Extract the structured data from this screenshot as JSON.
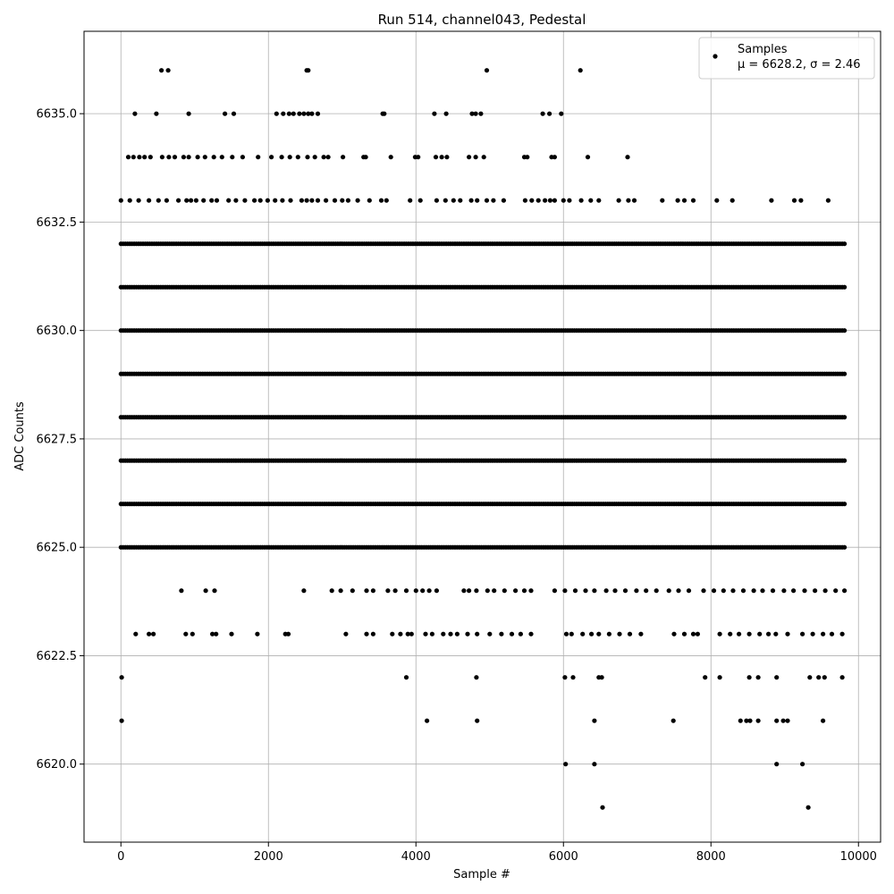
{
  "chart_data": {
    "type": "scatter",
    "title": "Run 514, channel043, Pedestal",
    "xlabel": "Sample #",
    "ylabel": "ADC Counts",
    "xlim": [
      -500,
      10300
    ],
    "ylim": [
      6618.2,
      6636.9
    ],
    "xticks": [
      0,
      2000,
      4000,
      6000,
      8000,
      10000
    ],
    "xtick_labels": [
      "0",
      "2000",
      "4000",
      "6000",
      "8000",
      "10000"
    ],
    "yticks": [
      6620.0,
      6622.5,
      6625.0,
      6627.5,
      6630.0,
      6632.5,
      6635.0
    ],
    "ytick_labels": [
      "6620.0",
      "6622.5",
      "6625.0",
      "6627.5",
      "6630.0",
      "6632.5",
      "6635.0"
    ],
    "grid": true,
    "legend": {
      "placement": "top-right",
      "entries": [
        {
          "line1": "Samples",
          "line2": "μ = 6628.2, σ = 2.46"
        }
      ]
    },
    "series": [
      {
        "name": "Samples",
        "color": "#000000",
        "x_range": [
          0,
          9830
        ],
        "dense_levels": [
          6625,
          6626,
          6627,
          6628,
          6629,
          6630,
          6631,
          6632
        ],
        "bands": [
          {
            "y": 6636,
            "x": [
              550,
              640,
              2520,
              2540,
              4960,
              6230
            ]
          },
          {
            "y": 6635,
            "x": [
              190,
              480,
              920,
              1410,
              1530,
              2110,
              2200,
              2280,
              2340,
              2420,
              2480,
              2540,
              2590,
              2670,
              3550,
              3570,
              4250,
              4410,
              4760,
              4810,
              4880,
              5720,
              5810,
              5970
            ]
          },
          {
            "y": 6634,
            "x": [
              100,
              170,
              250,
              320,
              400,
              560,
              650,
              730,
              850,
              920,
              1040,
              1140,
              1260,
              1370,
              1510,
              1650,
              1860,
              2040,
              2180,
              2290,
              2400,
              2530,
              2630,
              2750,
              2810,
              3010,
              3290,
              3320,
              3660,
              3990,
              4030,
              4270,
              4350,
              4420,
              4720,
              4810,
              4920,
              5470,
              5510,
              5840,
              5880,
              6330,
              6870
            ]
          },
          {
            "y": 6633,
            "x": [
              0,
              120,
              240,
              380,
              510,
              620,
              780,
              890,
              950,
              1020,
              1120,
              1230,
              1300,
              1460,
              1560,
              1680,
              1810,
              1890,
              1990,
              2090,
              2190,
              2300,
              2450,
              2520,
              2590,
              2670,
              2780,
              2900,
              3000,
              3080,
              3210,
              3370,
              3530,
              3600,
              3920,
              4060,
              4280,
              4400,
              4510,
              4600,
              4750,
              4830,
              4960,
              5050,
              5190,
              5480,
              5570,
              5660,
              5750,
              5820,
              5880,
              6000,
              6080,
              6240,
              6370,
              6480,
              6750,
              6880,
              6960,
              7340,
              7550,
              7640,
              7760,
              8080,
              8290,
              8820,
              9130,
              9220,
              9590
            ]
          },
          {
            "y": 6624,
            "x": [
              820,
              1150,
              1270,
              2480,
              2860,
              2980,
              3140,
              3330,
              3420,
              3620,
              3720,
              3870,
              4000,
              4090,
              4180,
              4280,
              4650,
              4720,
              4820,
              4970,
              5060,
              5200,
              5350,
              5470,
              5560,
              5880,
              6020,
              6160,
              6300,
              6420,
              6580,
              6700,
              6840,
              6990,
              7120,
              7260,
              7430,
              7560,
              7700,
              7900,
              8040,
              8170,
              8300,
              8440,
              8580,
              8700,
              8840,
              8990,
              9120,
              9270,
              9410,
              9550,
              9690,
              9810
            ]
          },
          {
            "y": 6623,
            "x": [
              200,
              380,
              440,
              880,
              970,
              1240,
              1290,
              1500,
              1850,
              2230,
              2270,
              3050,
              3330,
              3420,
              3680,
              3790,
              3890,
              3940,
              4130,
              4220,
              4370,
              4470,
              4560,
              4700,
              4830,
              5000,
              5160,
              5300,
              5420,
              5560,
              6040,
              6110,
              6260,
              6380,
              6480,
              6620,
              6760,
              6900,
              7050,
              7500,
              7640,
              7760,
              7820,
              8120,
              8260,
              8380,
              8520,
              8660,
              8780,
              8880,
              9040,
              9240,
              9380,
              9520,
              9640,
              9780
            ]
          },
          {
            "y": 6622,
            "x": [
              10,
              3870,
              4820,
              6020,
              6130,
              6480,
              6520,
              7920,
              8120,
              8520,
              8640,
              8890,
              9340,
              9460,
              9540,
              9780
            ]
          },
          {
            "y": 6621,
            "x": [
              10,
              4150,
              4830,
              6420,
              7490,
              8400,
              8480,
              8530,
              8640,
              8890,
              8980,
              9040,
              9520
            ]
          },
          {
            "y": 6620,
            "x": [
              6030,
              6420,
              8890,
              9240
            ]
          },
          {
            "y": 6619,
            "x": [
              6530,
              9320
            ]
          }
        ]
      }
    ]
  }
}
